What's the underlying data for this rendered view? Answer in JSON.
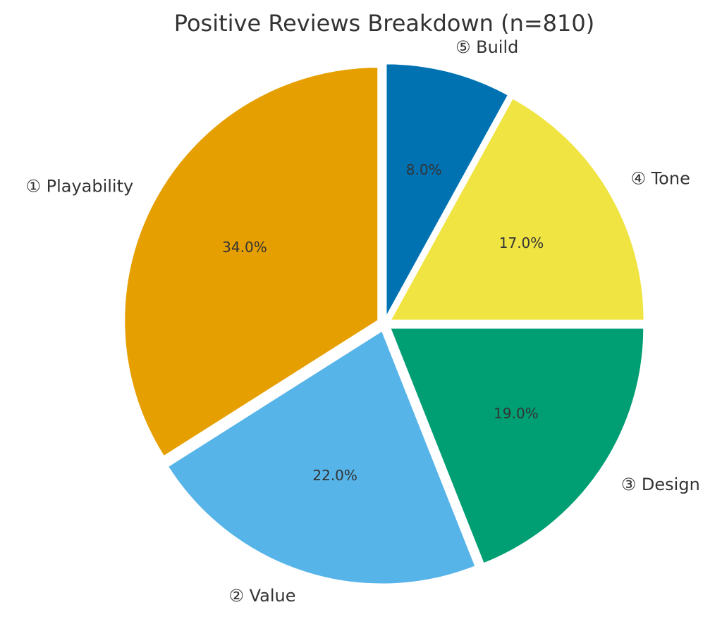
{
  "chart_data": {
    "type": "pie",
    "title": "Positive Reviews Breakdown (n=810)",
    "start_angle_deg": 90,
    "direction": "counterclockwise",
    "exploded": true,
    "slices": [
      {
        "label": "① Playability",
        "value": 34.0,
        "pct_label": "34.0%",
        "color": "#E69F00"
      },
      {
        "label": "② Value",
        "value": 22.0,
        "pct_label": "22.0%",
        "color": "#56B4E9"
      },
      {
        "label": "③ Design",
        "value": 19.0,
        "pct_label": "19.0%",
        "color": "#009E73"
      },
      {
        "label": "④ Tone",
        "value": 17.0,
        "pct_label": "17.0%",
        "color": "#F0E442"
      },
      {
        "label": "⑤ Build",
        "value": 8.0,
        "pct_label": "8.0%",
        "color": "#0072B2"
      }
    ]
  }
}
